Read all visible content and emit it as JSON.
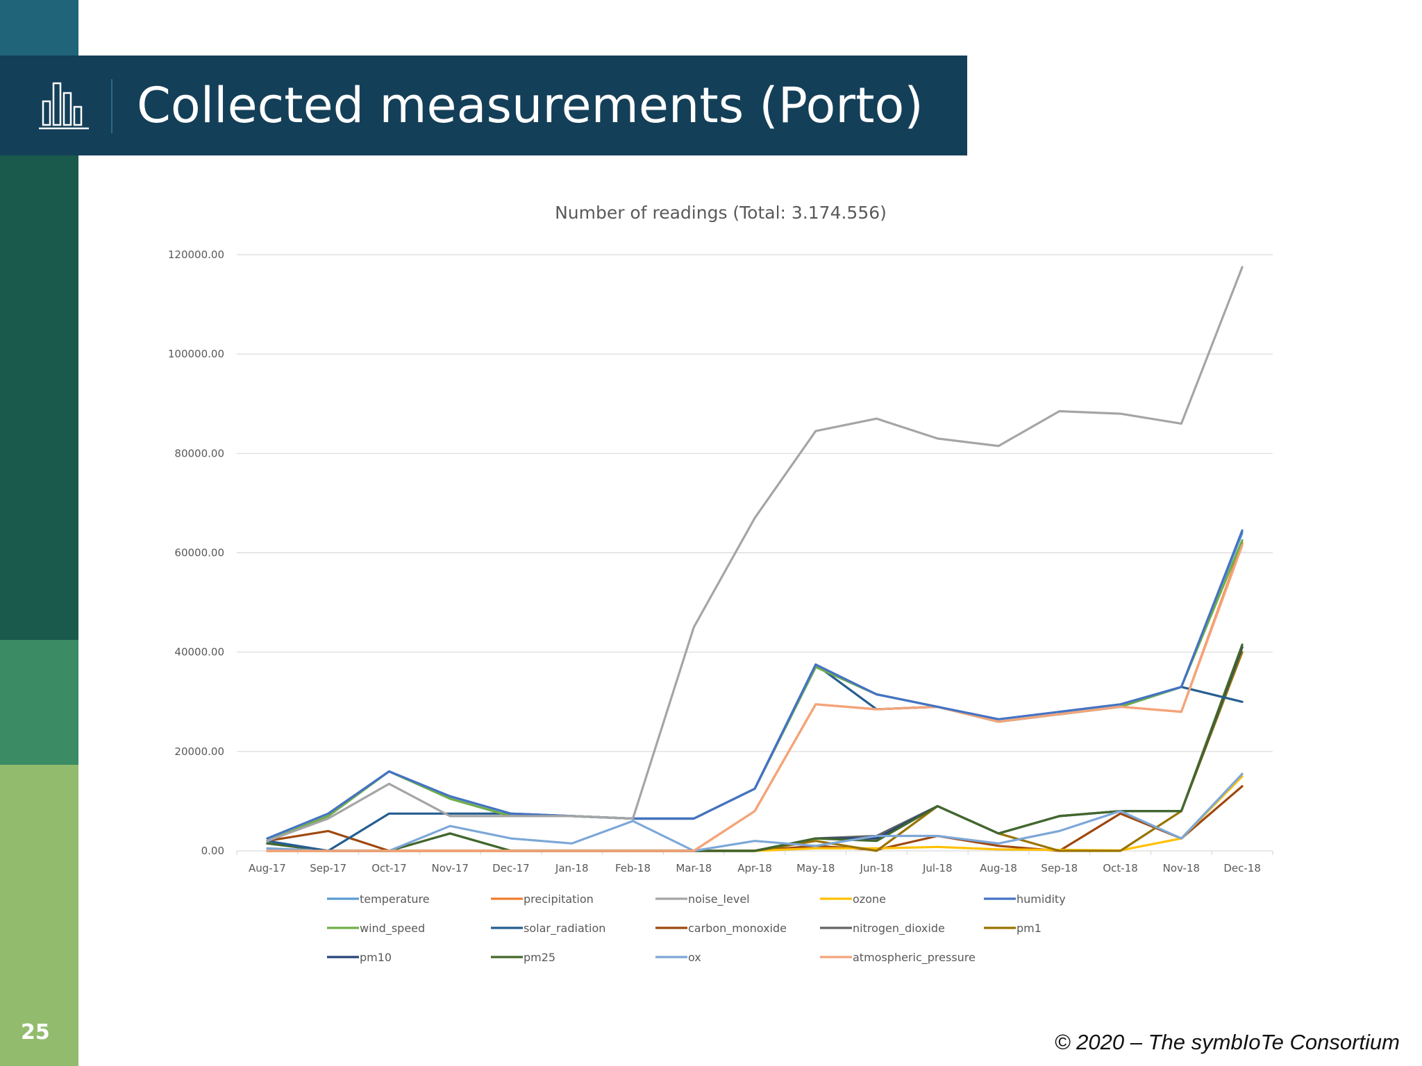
{
  "slide": {
    "title": "Collected measurements (Porto)",
    "page_number": "25",
    "copyright": "© 2020 – The symbIoTe Consortium",
    "title_icon": "bar-chart-icon"
  },
  "colors": {
    "title_bar": "#143f58",
    "sidebar": [
      "#1f6478",
      "#195a4c",
      "#3b8b64",
      "#93bb6e"
    ]
  },
  "chart_data": {
    "type": "line",
    "title": "Number of readings (Total: 3.174.556)",
    "categories": [
      "Aug-17",
      "Sep-17",
      "Oct-17",
      "Nov-17",
      "Dec-17",
      "Jan-18",
      "Feb-18",
      "Mar-18",
      "Apr-18",
      "May-18",
      "Jun-18",
      "Jul-18",
      "Aug-18",
      "Sep-18",
      "Oct-18",
      "Nov-18",
      "Dec-18"
    ],
    "ylim": [
      0,
      120000
    ],
    "yticks": [
      0,
      20000,
      40000,
      60000,
      80000,
      100000,
      120000
    ],
    "ytick_labels": [
      "0.00",
      "20000.00",
      "40000.00",
      "60000.00",
      "80000.00",
      "100000.00",
      "120000.00"
    ],
    "grid": true,
    "legend_position": "bottom",
    "series": [
      {
        "name": "temperature",
        "color": "#5b9bd5",
        "values": [
          2000,
          7000,
          16000,
          10500,
          7000,
          7000,
          6500,
          6500,
          12500,
          37000,
          31500,
          29000,
          26000,
          27500,
          29000,
          33000,
          64000
        ]
      },
      {
        "name": "precipitation",
        "color": "#ed7d31",
        "values": [
          0,
          0,
          0,
          0,
          0,
          0,
          0,
          0,
          8000,
          29500,
          28500,
          29000,
          26000,
          27500,
          29000,
          28000,
          62000
        ]
      },
      {
        "name": "noise_level",
        "color": "#a5a5a5",
        "values": [
          2000,
          6500,
          13500,
          7000,
          7000,
          7000,
          6500,
          45000,
          67000,
          84500,
          87000,
          83000,
          81500,
          88500,
          88000,
          86000,
          117500
        ]
      },
      {
        "name": "ozone",
        "color": "#ffc000",
        "values": [
          0,
          0,
          0,
          0,
          0,
          0,
          0,
          0,
          0,
          500,
          500,
          800,
          300,
          200,
          100,
          2500,
          15000
        ]
      },
      {
        "name": "humidity",
        "color": "#4472c4",
        "values": [
          2500,
          7500,
          16000,
          11000,
          7500,
          7000,
          6500,
          6500,
          12500,
          37500,
          31500,
          29000,
          26500,
          28000,
          29500,
          33000,
          64500
        ]
      },
      {
        "name": "wind_speed",
        "color": "#70ad47",
        "values": [
          2000,
          7000,
          16000,
          10500,
          7000,
          7000,
          6500,
          6500,
          12500,
          37000,
          31500,
          29000,
          26000,
          27500,
          29000,
          33000,
          62500
        ]
      },
      {
        "name": "solar_radiation",
        "color": "#255e91",
        "values": [
          2000,
          0,
          7500,
          7500,
          7500,
          7000,
          6500,
          6500,
          12500,
          37500,
          28500,
          29000,
          26000,
          27500,
          29000,
          33000,
          30000
        ]
      },
      {
        "name": "carbon_monoxide",
        "color": "#9e480e",
        "values": [
          2000,
          4000,
          0,
          0,
          0,
          0,
          0,
          0,
          0,
          1000,
          200,
          3000,
          1000,
          0,
          7500,
          2500,
          13000
        ]
      },
      {
        "name": "nitrogen_dioxide",
        "color": "#636363",
        "values": [
          0,
          0,
          0,
          0,
          0,
          0,
          0,
          0,
          0,
          2500,
          3000,
          9000,
          3500,
          7000,
          8000,
          8000,
          41000
        ]
      },
      {
        "name": "pm1",
        "color": "#997300",
        "values": [
          0,
          0,
          0,
          0,
          0,
          0,
          0,
          0,
          0,
          2000,
          0,
          9000,
          3500,
          0,
          0,
          8000,
          40000
        ]
      },
      {
        "name": "pm10",
        "color": "#264478",
        "values": [
          1500,
          0,
          0,
          3500,
          0,
          0,
          0,
          0,
          0,
          2500,
          2500,
          9000,
          3500,
          7000,
          8000,
          8000,
          41000
        ]
      },
      {
        "name": "pm25",
        "color": "#43682b",
        "values": [
          1500,
          0,
          0,
          3500,
          0,
          0,
          0,
          0,
          0,
          2500,
          2000,
          9000,
          3500,
          7000,
          8000,
          8000,
          41500
        ]
      },
      {
        "name": "ox",
        "color": "#7ca7d8",
        "values": [
          500,
          0,
          0,
          5000,
          2500,
          1500,
          6000,
          0,
          2000,
          1000,
          3000,
          3000,
          1500,
          4000,
          8000,
          2500,
          15500
        ]
      },
      {
        "name": "atmospheric_pressure",
        "color": "#f4a47a",
        "values": [
          0,
          0,
          0,
          0,
          0,
          0,
          0,
          0,
          8000,
          29500,
          28500,
          29000,
          26000,
          27500,
          29000,
          28000,
          61500
        ]
      }
    ]
  }
}
